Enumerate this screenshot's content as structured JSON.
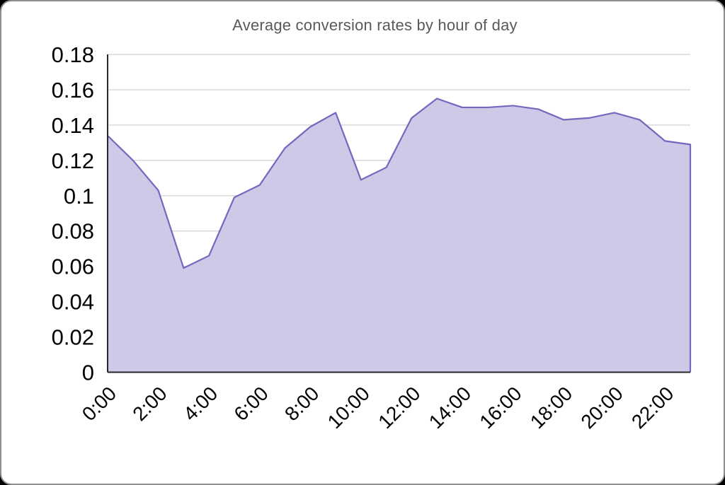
{
  "title": "Average conversion rates by hour of day",
  "colors": {
    "area_fill": "#cdc9e6",
    "line": "#7766bf",
    "gridline": "#d9d9d9",
    "axis": "#262626",
    "tick_label": "#000000",
    "title_text": "#595959",
    "card_border": "#8f8f8f",
    "page_background": "#000000",
    "plot_background": "#ffffff"
  },
  "chart_data": {
    "type": "area",
    "title": "Average conversion rates by hour of day",
    "categories": [
      "0:00",
      "1:00",
      "2:00",
      "3:00",
      "4:00",
      "5:00",
      "6:00",
      "7:00",
      "8:00",
      "9:00",
      "10:00",
      "11:00",
      "12:00",
      "13:00",
      "14:00",
      "15:00",
      "16:00",
      "17:00",
      "18:00",
      "19:00",
      "20:00",
      "21:00",
      "22:00",
      "23:00"
    ],
    "values": [
      0.134,
      0.12,
      0.103,
      0.059,
      0.066,
      0.099,
      0.106,
      0.127,
      0.139,
      0.147,
      0.109,
      0.116,
      0.144,
      0.155,
      0.15,
      0.15,
      0.151,
      0.149,
      0.143,
      0.144,
      0.147,
      0.143,
      0.131,
      0.129
    ],
    "xlabel": "",
    "ylabel": "",
    "ylim": [
      0,
      0.18
    ],
    "y_tick_labels": [
      "0",
      "0.02",
      "0.04",
      "0.06",
      "0.08",
      "0.1",
      "0.12",
      "0.14",
      "0.16",
      "0.18"
    ],
    "x_tick_labels": [
      "0:00",
      "2:00",
      "4:00",
      "6:00",
      "8:00",
      "10:00",
      "12:00",
      "14:00",
      "16:00",
      "18:00",
      "20:00",
      "22:00"
    ],
    "x_tick_every": 2,
    "x_label_rotation_deg": -45,
    "grid": "horizontal",
    "legend": "none"
  }
}
